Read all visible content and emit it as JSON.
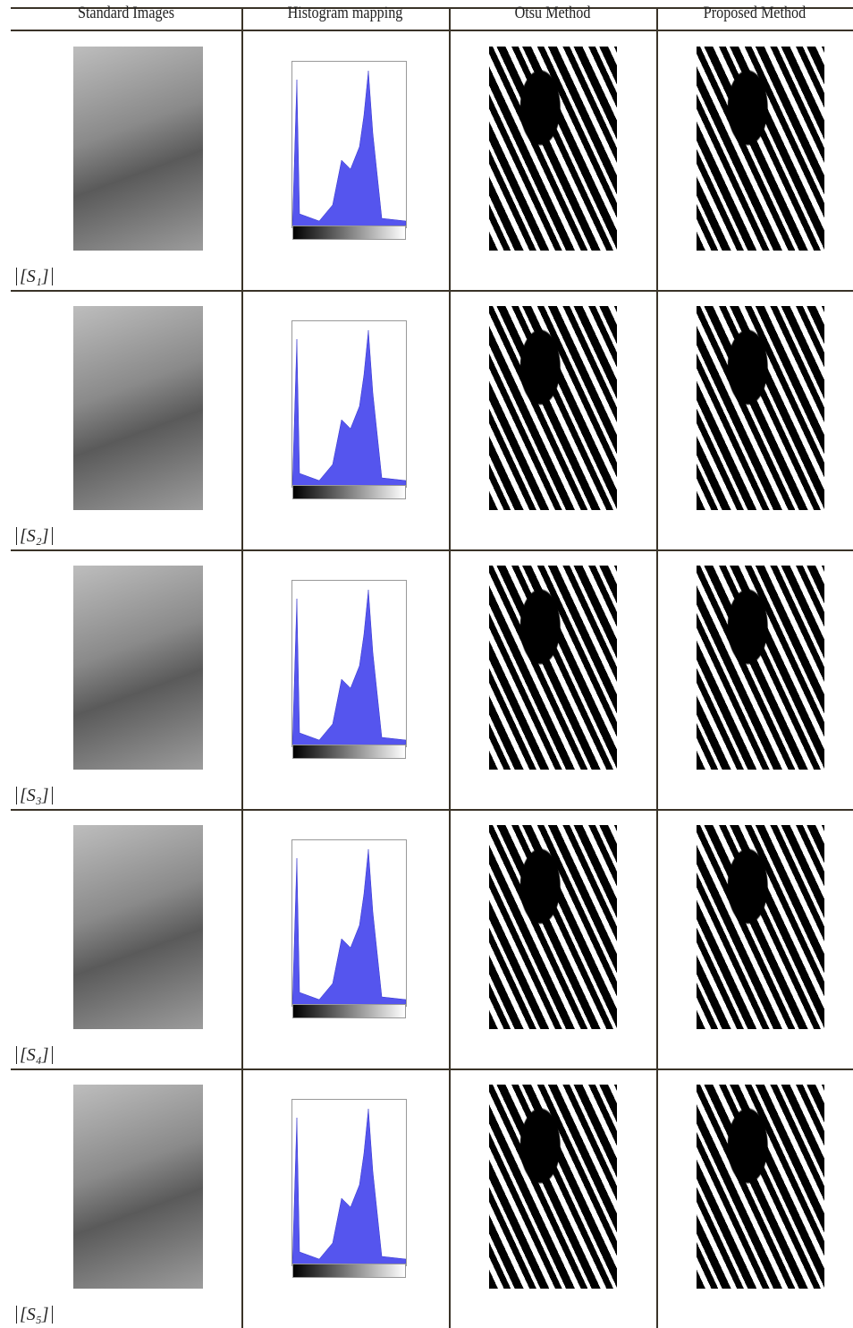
{
  "table": {
    "headers": [
      "Standard Images",
      "Histogram mapping",
      "Otsu Method",
      "Proposed Method"
    ],
    "row_labels": [
      "[S₁]",
      "[S₂]",
      "[S₃]",
      "[S₄]",
      "[S₅]"
    ]
  }
}
